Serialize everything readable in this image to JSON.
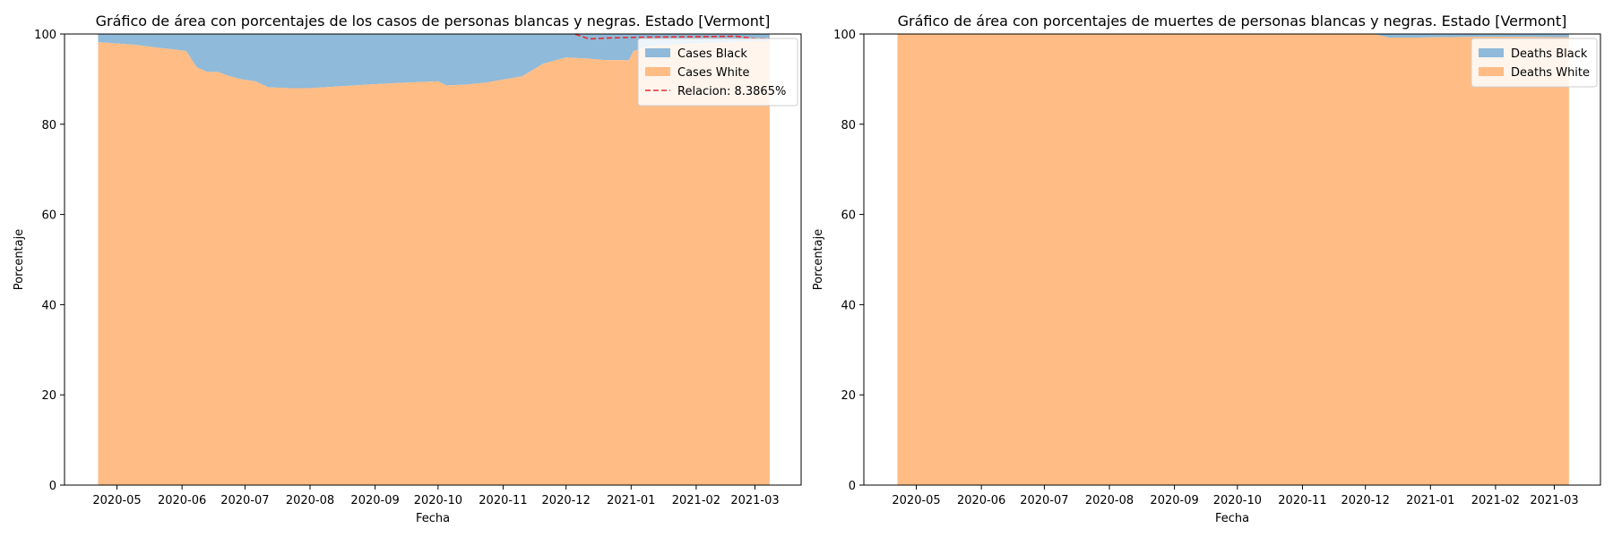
{
  "colors": {
    "black_fill": "#8fbad9",
    "white_fill": "#ffbc85",
    "ratio_line": "#e8292b",
    "axis": "#000000",
    "legend_border": "#cccccc"
  },
  "chart_data": [
    {
      "type": "area",
      "stacked": true,
      "percent": true,
      "title": "Gráfico de área con porcentajes de los casos de personas blancas y negras. Estado [Vermont]",
      "xlabel": "Fecha",
      "ylabel": "Porcentaje",
      "xlim": [
        "2020-04-06",
        "2021-03-23"
      ],
      "ylim": [
        0,
        100
      ],
      "xticks": [
        "2020-05-01",
        "2020-06-01",
        "2020-07-01",
        "2020-08-01",
        "2020-09-01",
        "2020-10-01",
        "2020-11-01",
        "2020-12-01",
        "2021-01-01",
        "2021-02-01",
        "2021-03-01"
      ],
      "xtick_labels": [
        "2020-05",
        "2020-06",
        "2020-07",
        "2020-08",
        "2020-09",
        "2020-10",
        "2020-11",
        "2020-12",
        "2021-01",
        "2021-02",
        "2021-03"
      ],
      "yticks": [
        0,
        20,
        40,
        60,
        80,
        100
      ],
      "ytick_labels": [
        "0",
        "20",
        "40",
        "60",
        "80",
        "100"
      ],
      "legend_position": "top-right",
      "legend": [
        "Cases Black",
        "Cases White",
        "Relacion: 8.3865%"
      ],
      "x": [
        "2020-04-22",
        "2020-05-01",
        "2020-05-10",
        "2020-05-20",
        "2020-05-31",
        "2020-06-03",
        "2020-06-08",
        "2020-06-13",
        "2020-06-18",
        "2020-06-24",
        "2020-06-30",
        "2020-07-06",
        "2020-07-12",
        "2020-07-22",
        "2020-08-01",
        "2020-08-15",
        "2020-09-01",
        "2020-09-15",
        "2020-10-01",
        "2020-10-05",
        "2020-10-15",
        "2020-10-25",
        "2020-11-01",
        "2020-11-10",
        "2020-11-20",
        "2020-12-01",
        "2020-12-10",
        "2020-12-20",
        "2020-12-31",
        "2021-01-02",
        "2021-01-10",
        "2021-01-20",
        "2021-02-01",
        "2021-02-15",
        "2021-03-01",
        "2021-03-08"
      ],
      "series": [
        {
          "name": "Cases White",
          "values": [
            98.2,
            97.9,
            97.6,
            97.0,
            96.4,
            96.2,
            92.6,
            91.6,
            91.6,
            90.6,
            89.9,
            89.5,
            88.2,
            88.0,
            88.0,
            88.4,
            88.9,
            89.2,
            89.5,
            88.6,
            88.8,
            89.3,
            89.9,
            90.6,
            93.4,
            94.8,
            94.6,
            94.2,
            94.2,
            96.2,
            97.3,
            97.6,
            97.9,
            98.2,
            98.4,
            98.4
          ]
        },
        {
          "name": "Cases Black",
          "values": [
            1.8,
            2.1,
            2.4,
            3.0,
            3.6,
            3.8,
            7.4,
            8.4,
            8.4,
            9.4,
            10.1,
            10.5,
            11.8,
            12.0,
            12.0,
            11.6,
            11.1,
            10.8,
            10.5,
            11.4,
            11.2,
            10.7,
            10.1,
            9.4,
            6.6,
            5.2,
            5.4,
            5.8,
            5.8,
            3.8,
            2.7,
            2.4,
            2.1,
            1.8,
            1.6,
            1.6
          ]
        }
      ],
      "ratio_line": {
        "name": "Relacion: 8.3865%",
        "x": [
          "2020-11-20",
          "2020-12-05",
          "2020-12-12",
          "2020-12-20",
          "2021-01-05",
          "2021-02-01",
          "2021-02-20",
          "2021-03-01",
          "2021-03-08"
        ],
        "values": [
          100.5,
          100.0,
          98.9,
          99.1,
          99.3,
          99.4,
          99.5,
          99.0,
          99.0
        ]
      }
    },
    {
      "type": "area",
      "stacked": true,
      "percent": true,
      "title": "Gráfico de área con porcentajes de muertes de personas blancas y negras. Estado [Vermont]",
      "xlabel": "Fecha",
      "ylabel": "Porcentaje",
      "xlim": [
        "2020-04-06",
        "2021-03-23"
      ],
      "ylim": [
        0,
        100
      ],
      "xticks": [
        "2020-05-01",
        "2020-06-01",
        "2020-07-01",
        "2020-08-01",
        "2020-09-01",
        "2020-10-01",
        "2020-11-01",
        "2020-12-01",
        "2021-01-01",
        "2021-02-01",
        "2021-03-01"
      ],
      "xtick_labels": [
        "2020-05",
        "2020-06",
        "2020-07",
        "2020-08",
        "2020-09",
        "2020-10",
        "2020-11",
        "2020-12",
        "2021-01",
        "2021-02",
        "2021-03"
      ],
      "yticks": [
        0,
        20,
        40,
        60,
        80,
        100
      ],
      "ytick_labels": [
        "0",
        "20",
        "40",
        "60",
        "80",
        "100"
      ],
      "legend_position": "top-right",
      "legend": [
        "Deaths Black",
        "Deaths White"
      ],
      "x": [
        "2020-04-22",
        "2020-12-05",
        "2020-12-12",
        "2020-12-25",
        "2021-01-10",
        "2021-02-01",
        "2021-03-01",
        "2021-03-08"
      ],
      "series": [
        {
          "name": "Deaths White",
          "values": [
            100,
            100,
            99.2,
            99.2,
            99.3,
            99.4,
            99.3,
            99.3
          ]
        },
        {
          "name": "Deaths Black",
          "values": [
            0,
            0,
            0.8,
            0.8,
            0.7,
            0.6,
            0.7,
            0.7
          ]
        }
      ]
    }
  ]
}
